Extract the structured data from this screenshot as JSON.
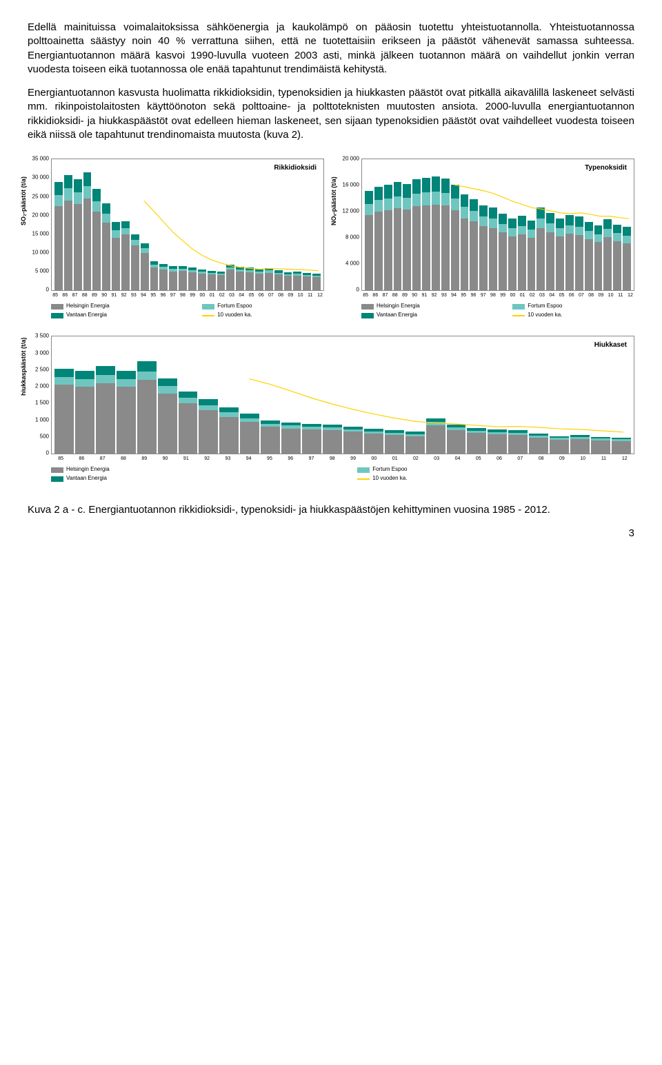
{
  "para1": "Edellä mainituissa voimalaitoksissa sähköenergia ja kaukolämpö on pääosin tuotettu yhteistuotannolla. Yhteistuotannossa polttoainetta säästyy noin 40 % verrattuna siihen, että ne tuotettaisiin erikseen ja päästöt vähenevät samassa suhteessa. Energiantuotannon määrä kasvoi 1990-luvulla vuoteen 2003 asti, minkä jälkeen tuotannon määrä on vaihdellut jonkin verran vuodesta toiseen eikä tuotannossa ole enää tapahtunut trendimäistä kehitystä.",
  "para2": "Energiantuotannon kasvusta huolimatta rikkidioksidin, typenoksidien ja hiukkasten päästöt ovat pitkällä aikavälillä laskeneet selvästi mm. rikinpoistolaitosten käyttöönoton sekä polttoaine- ja polttoteknisten muutosten ansiota. 2000-luvulla energiantuotannon rikkidioksidi- ja hiukkaspäästöt ovat edelleen hieman laskeneet, sen sijaan typenoksidien päästöt ovat vaihdelleet vuodesta toiseen eikä niissä ole tapahtunut trendinomaista muutosta (kuva 2).",
  "caption": "Kuva 2 a - c. Energiantuotannon rikkidioksidi-, typenoksidi- ja hiukkaspäästöjen kehittyminen vuosina 1985 - 2012.",
  "pagenum": "3",
  "years": [
    "85",
    "86",
    "87",
    "88",
    "89",
    "90",
    "91",
    "92",
    "93",
    "94",
    "95",
    "96",
    "97",
    "98",
    "99",
    "00",
    "01",
    "02",
    "03",
    "04",
    "05",
    "06",
    "07",
    "08",
    "09",
    "10",
    "11",
    "12"
  ],
  "legend": {
    "hel": "Helsingin Energia",
    "van": "Vantaan Energia",
    "for": "Fortum Espoo",
    "ma": "10 vuoden ka."
  },
  "colors": {
    "hel": "#8a8a8a",
    "van": "#008578",
    "for": "#6fc6c0",
    "ma": "#ffd100",
    "border": "#888888",
    "bg": "#ffffff"
  },
  "so2": {
    "title": "Rikkidioksidi",
    "ylabel": "SO₂-päästöt (t/a)",
    "ymax": 35000,
    "ytick_step": 5000,
    "yticks": [
      "0",
      "5 000",
      "10 000",
      "15 000",
      "20 000",
      "25 000",
      "30 000",
      "35 000"
    ],
    "hel": [
      22500,
      24000,
      23000,
      24500,
      21000,
      18000,
      14000,
      15000,
      12000,
      10000,
      6000,
      5500,
      5000,
      5200,
      4800,
      4500,
      4200,
      4000,
      5500,
      5000,
      4800,
      4500,
      4700,
      4200,
      3800,
      3900,
      3700,
      3500
    ],
    "for": [
      3000,
      3200,
      3100,
      3300,
      2800,
      2500,
      2000,
      1600,
      1400,
      1200,
      800,
      700,
      650,
      600,
      550,
      500,
      480,
      450,
      600,
      580,
      560,
      540,
      560,
      500,
      450,
      460,
      440,
      420
    ],
    "van": [
      3500,
      3600,
      3500,
      3700,
      3200,
      2800,
      2200,
      1800,
      1500,
      1300,
      900,
      800,
      750,
      700,
      650,
      600,
      570,
      540,
      700,
      680,
      660,
      640,
      660,
      600,
      550,
      560,
      540,
      520
    ],
    "ma": [
      null,
      null,
      null,
      null,
      null,
      null,
      null,
      null,
      null,
      23900,
      21200,
      18300,
      15500,
      13200,
      11000,
      9300,
      8100,
      7200,
      6500,
      6100,
      5800,
      5600,
      5800,
      5700,
      5600,
      5500,
      5400,
      5200
    ]
  },
  "nox": {
    "title": "Typenoksidit",
    "ylabel": "NOₓ-päästöt (t/a)",
    "ymax": 20000,
    "ytick_step": 4000,
    "yticks": [
      "0",
      "4 000",
      "8 000",
      "12 000",
      "16 000",
      "20 000"
    ],
    "hel": [
      11500,
      12000,
      12200,
      12500,
      12300,
      12800,
      13000,
      13100,
      12900,
      12200,
      11000,
      10500,
      9800,
      9500,
      8800,
      8200,
      8500,
      8000,
      9500,
      8800,
      8200,
      8600,
      8400,
      7800,
      7400,
      8100,
      7500,
      7200
    ],
    "for": [
      1700,
      1750,
      1800,
      1850,
      1820,
      1900,
      1950,
      1980,
      1950,
      1850,
      1700,
      1600,
      1500,
      1450,
      1350,
      1300,
      1330,
      1260,
      1480,
      1380,
      1300,
      1350,
      1330,
      1240,
      1180,
      1280,
      1200,
      1160
    ],
    "van": [
      2000,
      2050,
      2100,
      2150,
      2120,
      2200,
      2250,
      2280,
      2240,
      2100,
      1900,
      1800,
      1700,
      1650,
      1550,
      1450,
      1500,
      1420,
      1680,
      1560,
      1460,
      1520,
      1500,
      1400,
      1340,
      1440,
      1340,
      1300
    ],
    "ma": [
      null,
      null,
      null,
      null,
      null,
      null,
      null,
      null,
      null,
      16100,
      15800,
      15500,
      15200,
      14800,
      14200,
      13600,
      13100,
      12600,
      12400,
      12100,
      11800,
      11700,
      11800,
      11600,
      11300,
      11300,
      11100,
      10900
    ]
  },
  "pm": {
    "title": "Hiukkaset",
    "ylabel": "hiukkaspäästöt (t/a)",
    "ymax": 3500,
    "ytick_step": 500,
    "yticks": [
      "0",
      "500",
      "1 000",
      "1 500",
      "2 000",
      "2 500",
      "3 000",
      "3 500"
    ],
    "hel": [
      2050,
      2000,
      2100,
      2000,
      2200,
      1800,
      1500,
      1300,
      1100,
      950,
      800,
      750,
      720,
      700,
      650,
      600,
      550,
      520,
      850,
      700,
      620,
      580,
      560,
      480,
      420,
      440,
      400,
      380
    ],
    "for": [
      230,
      220,
      240,
      220,
      260,
      210,
      170,
      150,
      130,
      110,
      90,
      85,
      80,
      78,
      75,
      70,
      65,
      60,
      95,
      80,
      70,
      65,
      63,
      55,
      48,
      50,
      46,
      44
    ],
    "van": [
      260,
      250,
      270,
      250,
      290,
      230,
      190,
      170,
      150,
      130,
      110,
      100,
      95,
      92,
      88,
      82,
      76,
      72,
      110,
      92,
      82,
      76,
      74,
      64,
      56,
      58,
      53,
      50
    ],
    "ma": [
      null,
      null,
      null,
      null,
      null,
      null,
      null,
      null,
      null,
      2230,
      2070,
      1870,
      1660,
      1480,
      1320,
      1180,
      1060,
      960,
      910,
      880,
      840,
      800,
      810,
      780,
      740,
      720,
      680,
      640
    ]
  }
}
